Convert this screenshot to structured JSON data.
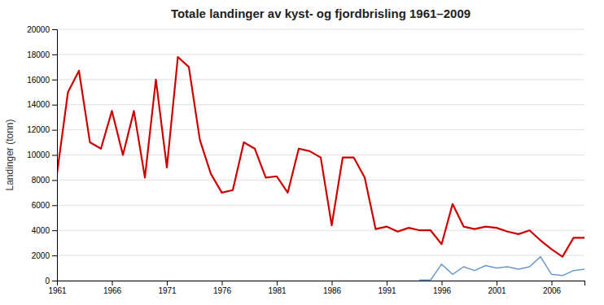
{
  "chart_data": {
    "type": "line",
    "title": "Totale landinger av kyst- og fjordbrisling 1961–2009",
    "y_label": "Landinger (tonn)",
    "x": [
      1961,
      1962,
      1963,
      1964,
      1965,
      1966,
      1967,
      1968,
      1969,
      1970,
      1971,
      1972,
      1973,
      1974,
      1975,
      1976,
      1977,
      1978,
      1979,
      1980,
      1981,
      1982,
      1983,
      1984,
      1985,
      1986,
      1987,
      1988,
      1989,
      1990,
      1991,
      1992,
      1993,
      1994,
      1995,
      1996,
      1997,
      1998,
      1999,
      2000,
      2001,
      2002,
      2003,
      2004,
      2005,
      2006,
      2007,
      2008,
      2009
    ],
    "series": [
      {
        "color": "#cc0000",
        "values": [
          8500,
          15000,
          16700,
          11000,
          10500,
          13500,
          10000,
          13500,
          8200,
          16000,
          9000,
          17800,
          17000,
          11200,
          8500,
          7000,
          7200,
          11000,
          10500,
          8200,
          8300,
          7000,
          10500,
          10300,
          9800,
          4400,
          9800,
          9800,
          8200,
          4100,
          4300,
          3900,
          4200,
          4000,
          4000,
          2900,
          6100,
          4300,
          4100,
          4300,
          4200,
          3900,
          3700,
          4000,
          3200,
          2500,
          1900,
          3400,
          3400
        ]
      },
      {
        "color": "#6699cc",
        "values": [
          null,
          null,
          null,
          null,
          null,
          null,
          null,
          null,
          null,
          null,
          null,
          null,
          null,
          null,
          null,
          null,
          null,
          null,
          null,
          null,
          null,
          null,
          null,
          null,
          null,
          null,
          null,
          null,
          null,
          null,
          null,
          null,
          null,
          50,
          50,
          1300,
          500,
          1100,
          800,
          1200,
          1000,
          1100,
          900,
          1100,
          1900,
          500,
          400,
          800,
          900
        ]
      }
    ],
    "xlim": [
      1961,
      2009
    ],
    "xticks": [
      1961,
      1966,
      1971,
      1976,
      1981,
      1986,
      1991,
      1996,
      2001,
      2006
    ],
    "ylim": [
      0,
      20000
    ],
    "yticks": [
      0,
      2000,
      4000,
      6000,
      8000,
      10000,
      12000,
      14000,
      16000,
      18000,
      20000
    ],
    "grid": "y"
  }
}
